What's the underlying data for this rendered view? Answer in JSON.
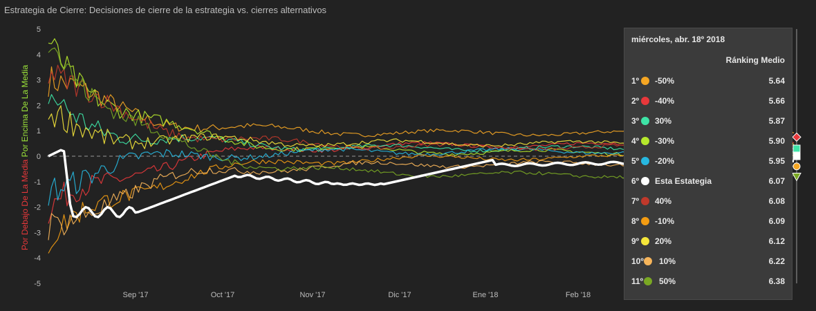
{
  "title": "Estrategia de Cierre: Decisiones de cierre de la estrategia vs. cierres alternativos",
  "y_axis": {
    "label_below": "Por Debajo De La Media",
    "label_above": "Por Encima De La Media",
    "label_below_color": "#e8383b",
    "label_above_color": "#9be33a"
  },
  "chart_data": {
    "type": "line",
    "ylim": [
      -5,
      5
    ],
    "yticks": [
      5,
      4,
      3,
      2,
      1,
      0,
      -1,
      -2,
      -3,
      -4,
      -5
    ],
    "xticks": [
      "Sep '17",
      "Oct '17",
      "Nov '17",
      "Dic '17",
      "Ene '18",
      "Feb '18"
    ],
    "x_range": [
      "Aug 2017",
      "Apr 18 2018"
    ],
    "reference_line": 0,
    "series": [
      {
        "name": "-50%",
        "color": "#f5a623"
      },
      {
        "name": "-40%",
        "color": "#e8383b"
      },
      {
        "name": "30%",
        "color": "#3ee3a6"
      },
      {
        "name": "-30%",
        "color": "#b6e82c"
      },
      {
        "name": "-20%",
        "color": "#27b8e0"
      },
      {
        "name": "Esta Estategia",
        "color": "#ffffff"
      },
      {
        "name": "40%",
        "color": "#c0392b"
      },
      {
        "name": "-10%",
        "color": "#f39c12"
      },
      {
        "name": "20%",
        "color": "#f5e63a"
      },
      {
        "name": "10%",
        "color": "#f7b55a"
      },
      {
        "name": "50%",
        "color": "#7aa823"
      }
    ]
  },
  "tooltip": {
    "date": "miércoles, abr. 18º 2018",
    "header": "Ránking Medio",
    "rows": [
      {
        "rank": "1º",
        "name": "-50%",
        "value": "5.64",
        "color": "#f5a623"
      },
      {
        "rank": "2º",
        "name": "-40%",
        "value": "5.66",
        "color": "#e8383b"
      },
      {
        "rank": "3º",
        "name": "30%",
        "value": "5.87",
        "color": "#3ee3a6"
      },
      {
        "rank": "4º",
        "name": "-30%",
        "value": "5.90",
        "color": "#b6e82c"
      },
      {
        "rank": "5º",
        "name": "-20%",
        "value": "5.95",
        "color": "#27b8e0"
      },
      {
        "rank": "6º",
        "name": "Esta Estategia",
        "value": "6.07",
        "color": "#ffffff"
      },
      {
        "rank": "7º",
        "name": "40%",
        "value": "6.08",
        "color": "#c0392b"
      },
      {
        "rank": "8º",
        "name": "-10%",
        "value": "6.09",
        "color": "#f39c12"
      },
      {
        "rank": "9º",
        "name": "20%",
        "value": "6.12",
        "color": "#f5e63a"
      },
      {
        "rank": "10º",
        "name": "10%",
        "value": "6.22",
        "color": "#f7b55a"
      },
      {
        "rank": "11º",
        "name": "50%",
        "value": "6.38",
        "color": "#7aa823"
      }
    ]
  }
}
